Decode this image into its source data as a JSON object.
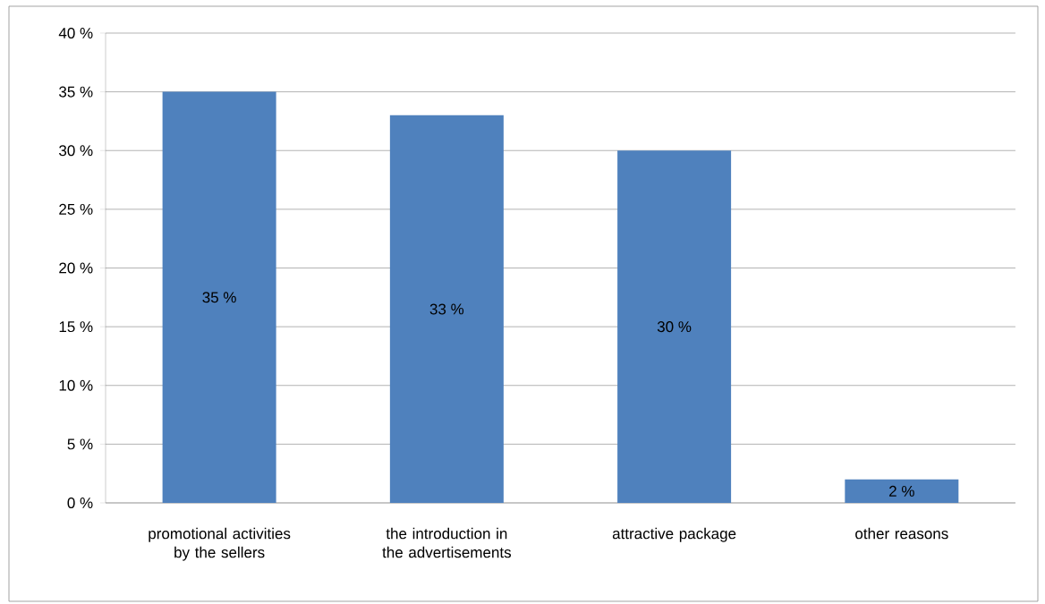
{
  "chart_data": {
    "type": "bar",
    "categories": [
      "promotional activities by the sellers",
      "the introduction in the advertisements",
      "attractive package",
      "other reasons"
    ],
    "values": [
      35,
      33,
      30,
      2
    ],
    "value_labels": [
      "35 %",
      "33 %",
      "30 %",
      "2 %"
    ],
    "color": "#4f81bd",
    "ylim": [
      0,
      40
    ],
    "yticks": [
      {
        "value": 0,
        "label": "0 %"
      },
      {
        "value": 5,
        "label": "5 %"
      },
      {
        "value": 10,
        "label": "10 %"
      },
      {
        "value": 15,
        "label": "15 %"
      },
      {
        "value": 20,
        "label": "20 %"
      },
      {
        "value": 25,
        "label": "25 %"
      },
      {
        "value": 30,
        "label": "30 %"
      },
      {
        "value": 35,
        "label": "35 %"
      },
      {
        "value": 40,
        "label": "40 %"
      }
    ],
    "grid": "y"
  }
}
